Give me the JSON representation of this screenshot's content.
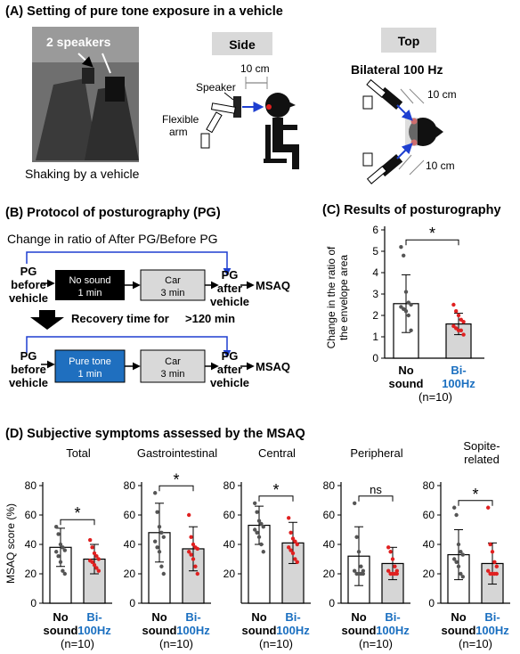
{
  "panelA": {
    "heading": "(A) Setting of pure tone exposure in a vehicle",
    "photo_label": "2 speakers",
    "photo_caption": "Shaking by a vehicle",
    "side_tab": "Side",
    "top_tab": "Top",
    "side_distance": "10 cm",
    "speaker_label": "Speaker",
    "arm_label_1": "Flexible",
    "arm_label_2": "arm",
    "bilateral_label": "Bilateral 100 Hz",
    "top_distance_1": "10 cm",
    "top_distance_2": "10 cm"
  },
  "panelB": {
    "heading": "(B) Protocol of posturography (PG)",
    "ratio_label": "Change in ratio of After PG/Before PG",
    "row1": {
      "before_1": "PG",
      "before_2": "before",
      "before_3": "vehicle",
      "stim_1": "No sound",
      "stim_2": "1 min",
      "car_1": "Car",
      "car_2": "3 min",
      "after_1": "PG",
      "after_2": "after",
      "after_3": "vehicle",
      "msaq": "MSAQ"
    },
    "recovery": "Recovery time for",
    "recovery_value": ">120 min",
    "row2": {
      "before_1": "PG",
      "before_2": "before",
      "before_3": "vehicle",
      "stim_1": "Pure tone",
      "stim_2": "1 min",
      "car_1": "Car",
      "car_2": "3 min",
      "after_1": "PG",
      "after_2": "after",
      "after_3": "vehicle",
      "msaq": "MSAQ"
    }
  },
  "panelC": {
    "heading": "(C) Results of posturography",
    "ylabel_1": "Change in the ratio of",
    "ylabel_2": "the envelope area",
    "x_label_no_1": "No",
    "x_label_no_2": "sound",
    "x_label_bi_1": "Bi-",
    "x_label_bi_2": "100Hz",
    "n_label": "(n=10)",
    "sig": "*"
  },
  "panelD": {
    "heading": "(D) Subjective symptoms assessed by the MSAQ",
    "ylabel": "MSAQ score (%)",
    "x_label_no_1": "No",
    "x_label_no_2": "sound",
    "x_label_bi_1": "Bi-",
    "x_label_bi_2": "100Hz",
    "n_label": "(n=10)"
  },
  "colors": {
    "red": "#e02020",
    "blue_text": "#1a6fc0",
    "blue_arrow": "#1e3fd0",
    "pure_tone_box": "#1f6fbf",
    "bar_grey": "#d6d6d6",
    "dot_dark": "#555555"
  },
  "chart_data": [
    {
      "type": "bar",
      "title": "(C) Results of posturography",
      "categories": [
        "No sound",
        "Bi-100Hz"
      ],
      "values": [
        2.55,
        1.6
      ],
      "errors": [
        1.35,
        0.5
      ],
      "ylim": [
        0,
        6
      ],
      "yticks": [
        0,
        1,
        2,
        3,
        4,
        5,
        6
      ],
      "significance": "*",
      "points": [
        [
          5.2,
          4.8,
          3.1,
          2.6,
          2.5,
          2.4,
          2.3,
          2.2,
          2.0,
          1.3
        ],
        [
          2.5,
          2.2,
          2.0,
          1.8,
          1.7,
          1.5,
          1.4,
          1.3,
          1.3,
          1.1
        ]
      ]
    },
    {
      "type": "bar",
      "title": "Total",
      "categories": [
        "No sound",
        "Bi-100Hz"
      ],
      "values": [
        38,
        30
      ],
      "errors": [
        13,
        10
      ],
      "ylim": [
        0,
        80
      ],
      "yticks": [
        0,
        20,
        40,
        60,
        80
      ],
      "significance": "*",
      "points": [
        [
          52,
          47,
          40,
          38,
          36,
          35,
          32,
          28,
          22,
          20
        ],
        [
          43,
          38,
          34,
          32,
          30,
          29,
          28,
          26,
          24,
          22
        ]
      ]
    },
    {
      "type": "bar",
      "title": "Gastrointestinal",
      "categories": [
        "No sound",
        "Bi-100Hz"
      ],
      "values": [
        48,
        37
      ],
      "errors": [
        20,
        15
      ],
      "ylim": [
        0,
        80
      ],
      "yticks": [
        0,
        20,
        40,
        60,
        80
      ],
      "significance": "*",
      "points": [
        [
          75,
          62,
          52,
          48,
          45,
          42,
          38,
          35,
          25,
          20
        ],
        [
          60,
          45,
          40,
          38,
          37,
          35,
          33,
          30,
          25,
          20
        ]
      ]
    },
    {
      "type": "bar",
      "title": "Central",
      "categories": [
        "No sound",
        "Bi-100Hz"
      ],
      "values": [
        53,
        41
      ],
      "errors": [
        13,
        14
      ],
      "ylim": [
        0,
        80
      ],
      "yticks": [
        20,
        40,
        60,
        80
      ],
      "significance": "*",
      "points": [
        [
          68,
          62,
          56,
          54,
          52,
          50,
          48,
          45,
          40,
          35
        ],
        [
          58,
          48,
          44,
          42,
          40,
          38,
          36,
          34,
          30,
          28
        ]
      ]
    },
    {
      "type": "bar",
      "title": "Peripheral",
      "categories": [
        "No sound",
        "Bi-100Hz"
      ],
      "values": [
        32,
        27
      ],
      "errors": [
        20,
        11
      ],
      "ylim": [
        0,
        80
      ],
      "yticks": [
        0,
        20,
        40,
        60,
        80
      ],
      "significance": "ns",
      "points": [
        [
          68,
          45,
          35,
          25,
          22,
          22,
          20,
          20,
          20,
          20
        ],
        [
          38,
          35,
          30,
          25,
          22,
          22,
          20,
          20,
          20,
          20
        ]
      ]
    },
    {
      "type": "bar",
      "title": "Sopite-related",
      "categories": [
        "No sound",
        "Bi-100Hz"
      ],
      "values": [
        33,
        27
      ],
      "errors": [
        17,
        14
      ],
      "ylim": [
        0,
        80
      ],
      "yticks": [
        0,
        20,
        40,
        60,
        80
      ],
      "significance": "*",
      "points": [
        [
          65,
          60,
          40,
          35,
          33,
          30,
          28,
          25,
          20,
          18
        ],
        [
          65,
          40,
          35,
          28,
          25,
          22,
          20,
          20,
          20,
          20
        ]
      ]
    }
  ]
}
